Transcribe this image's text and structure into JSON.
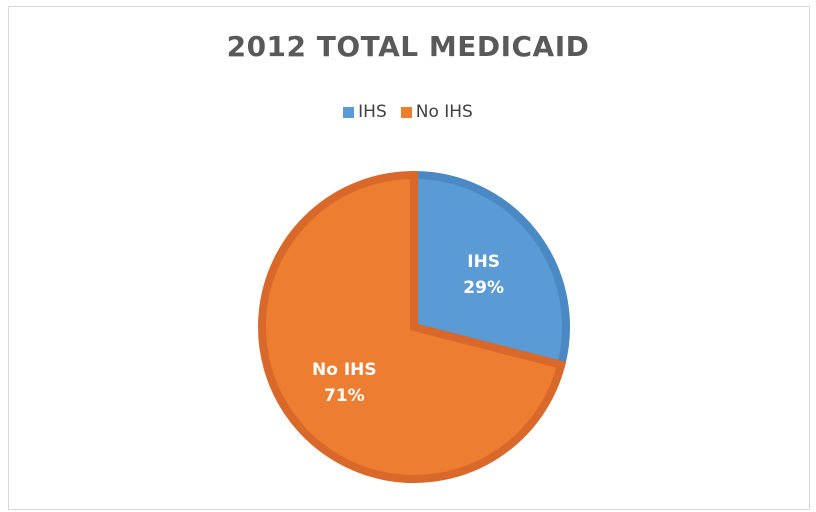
{
  "chart_data": {
    "type": "pie",
    "title": "2012 TOTAL MEDICAID",
    "legend_position": "top",
    "slices": [
      {
        "label": "IHS",
        "percent_label": "29%",
        "value": 29,
        "color": "#5b9bd5",
        "edge_color": "#4a89c4"
      },
      {
        "label": "No IHS",
        "percent_label": "71%",
        "value": 71,
        "color": "#ed7d31",
        "edge_color": "#d9692a"
      }
    ]
  }
}
